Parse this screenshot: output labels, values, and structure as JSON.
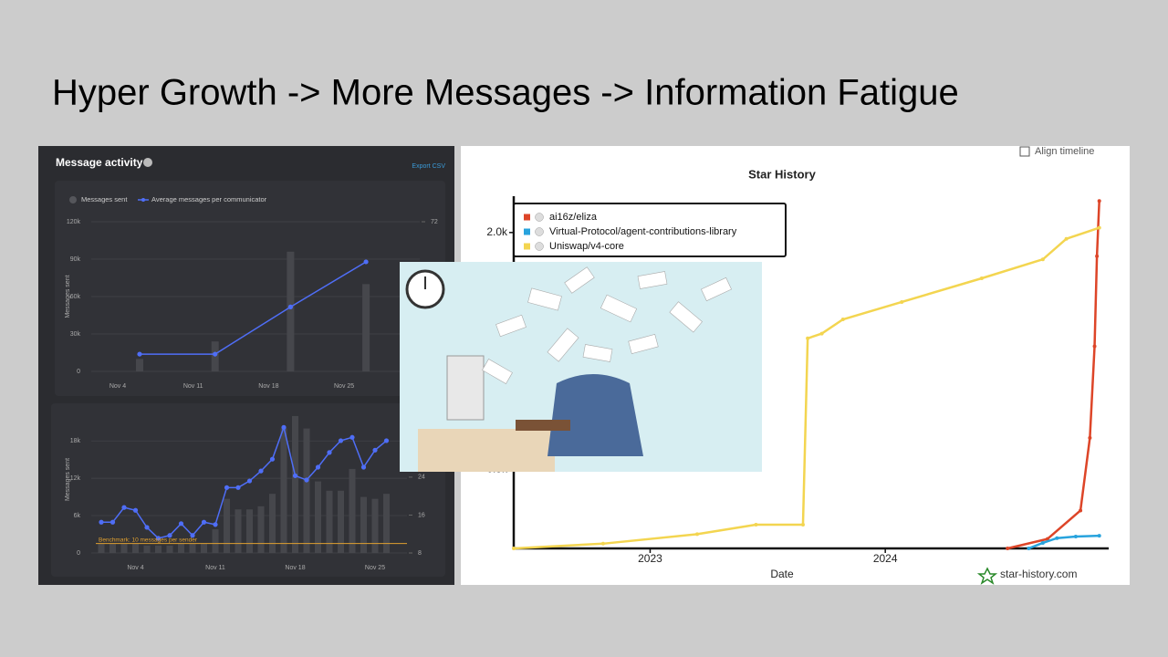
{
  "title": "Hyper Growth -> More Messages -> Information Fatigue",
  "chart_data": [
    {
      "type": "bar",
      "title": "Message activity",
      "button": "Export CSV",
      "y_label": "Messages sent",
      "categories": [
        "Nov 4",
        "Nov 11",
        "Nov 18",
        "Nov 25"
      ],
      "series": [
        {
          "name": "Messages sent",
          "color": "#46474c",
          "values": [
            10000,
            24000,
            96000,
            70000
          ]
        },
        {
          "name": "Average messages per communicator",
          "color": "#4f6ef7",
          "type": "line",
          "axis": "y2",
          "values": [
            8.3,
            8.3,
            31,
            52.7
          ]
        }
      ],
      "ylim": [
        0,
        120000
      ],
      "yticks": [
        0,
        {
          "value": 30000,
          "label": "30k"
        },
        {
          "value": 60000,
          "label": "60k"
        },
        {
          "value": 90000,
          "label": "90k"
        },
        {
          "value": 120000,
          "label": "120k"
        }
      ],
      "y2lim": [
        0,
        72
      ],
      "y2ticks": [
        72
      ],
      "grid": true
    },
    {
      "type": "bar",
      "y_label": "Messages sent",
      "categories": [
        null,
        null,
        null,
        "Nov 4",
        null,
        null,
        null,
        null,
        null,
        null,
        "Nov 11",
        null,
        null,
        null,
        null,
        null,
        null,
        "Nov 18",
        null,
        null,
        null,
        null,
        null,
        null,
        "Nov 25",
        null
      ],
      "series": [
        {
          "name": "Messages sent",
          "color": "#46474c",
          "values": [
            1500,
            1500,
            1500,
            1500,
            1200,
            1200,
            1200,
            1500,
            1500,
            1500,
            3800,
            8700,
            7000,
            7000,
            7500,
            9500,
            20000,
            22000,
            20000,
            11500,
            10000,
            10000,
            13500,
            9000,
            8700,
            9500
          ]
        },
        {
          "name": "Average messages per communicator",
          "color": "#4f6ef7",
          "type": "line",
          "axis": "y2",
          "values": [
            14.5,
            14.5,
            17.6,
            17,
            13.4,
            11.1,
            11.7,
            14.2,
            11.7,
            14.5,
            14,
            21.8,
            21.8,
            23.2,
            25.3,
            27.8,
            34.5,
            24.3,
            23.4,
            26.1,
            29.2,
            31.7,
            32.4,
            26.1,
            29.7,
            31.7
          ]
        }
      ],
      "ylim": [
        0,
        23600
      ],
      "yticks": [
        0,
        {
          "value": 6000,
          "label": "6k"
        },
        {
          "value": 12000,
          "label": "12k"
        },
        {
          "value": 18000,
          "label": "18k"
        }
      ],
      "y2lim": [
        8,
        39
      ],
      "y2ticks": [
        8,
        16,
        24
      ],
      "benchmark": {
        "value": 10,
        "label": "Benchmark: 10 messages per sender",
        "color": "#e0a030"
      },
      "grid": true
    },
    {
      "type": "line",
      "title": "Star History",
      "x_label": "Date",
      "checkbox": "Align timeline",
      "watermark": "star-history.com",
      "series": [
        {
          "name": "ai16z/eliza",
          "color": "#dd4528",
          "x": [
            2024.52,
            2024.69,
            2024.83,
            2024.87,
            2024.89,
            2024.9,
            2024.91
          ],
          "values": [
            0,
            60,
            240,
            700,
            1280,
            1850,
            2200
          ]
        },
        {
          "name": "Virtual-Protocol/agent-contributions-library",
          "color": "#28a3dd",
          "x": [
            2024.61,
            2024.67,
            2024.73,
            2024.81,
            2024.91
          ],
          "values": [
            0,
            35,
            65,
            75,
            80
          ]
        },
        {
          "name": "Uniswap/v4-core",
          "color": "#f3d550",
          "x": [
            2022.42,
            2022.8,
            2023.2,
            2023.45,
            2023.65,
            2023.67,
            2023.73,
            2023.82,
            2024.07,
            2024.41,
            2024.67,
            2024.77,
            2024.91
          ],
          "values": [
            0,
            30,
            90,
            150,
            150,
            1330,
            1360,
            1450,
            1560,
            1710,
            1830,
            1960,
            2030
          ]
        }
      ],
      "xlim": [
        2022.42,
        2024.95
      ],
      "xticks": [
        2023,
        2024
      ],
      "ylim": [
        0,
        2230
      ],
      "yticks": [
        {
          "value": 500,
          "label": "0.5k"
        },
        {
          "value": 2000,
          "label": "2.0k"
        }
      ]
    }
  ]
}
